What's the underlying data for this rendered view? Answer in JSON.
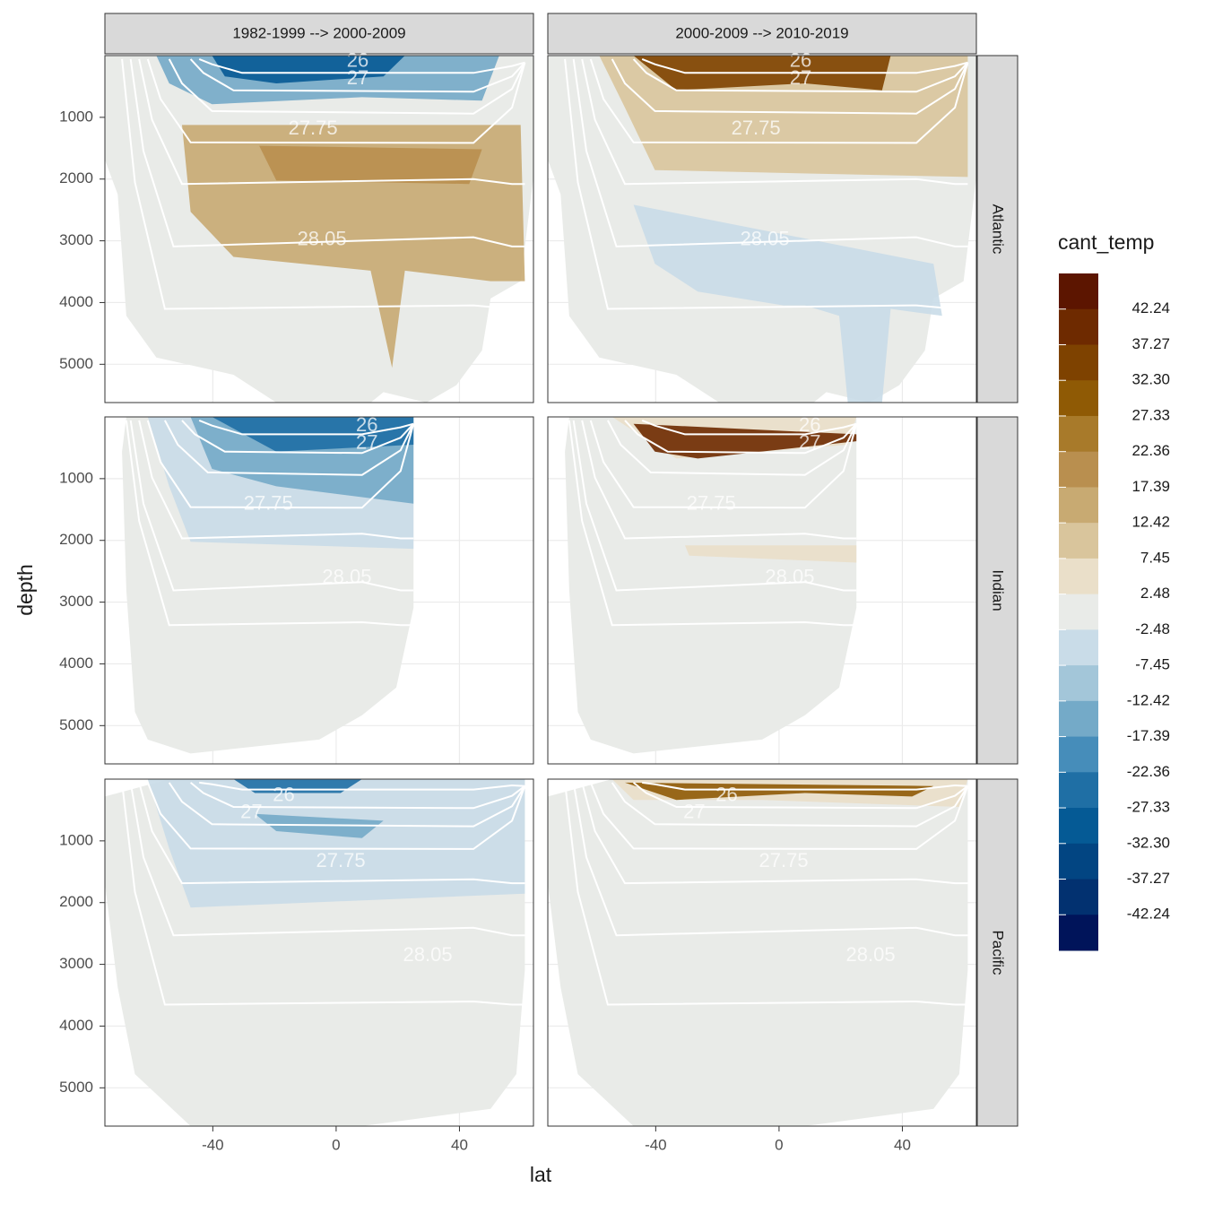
{
  "chart_data": {
    "type": "contour",
    "xlabel": "lat",
    "ylabel": "depth",
    "facet_cols": [
      "1982-1999 --> 2000-2009",
      "2000-2009 --> 2010-2019"
    ],
    "facet_rows": [
      "Atlantic",
      "Indian",
      "Pacific"
    ],
    "xlim": [
      -75,
      64
    ],
    "ylim": [
      0,
      5620
    ],
    "xticks": [
      -40,
      0,
      40
    ],
    "yticks": [
      1000,
      2000,
      3000,
      4000,
      5000
    ],
    "y_reversed": true,
    "grid": true,
    "legend_title": "cant_temp",
    "legend_breaks": [
      42.24,
      37.27,
      32.3,
      27.33,
      22.36,
      17.39,
      12.42,
      7.45,
      2.48,
      -2.48,
      -7.45,
      -12.42,
      -17.39,
      -22.36,
      -27.33,
      -32.3,
      -37.27,
      -42.24
    ],
    "legend_break_labels": [
      "42.24",
      "37.27",
      "32.30",
      "27.33",
      "22.36",
      "17.39",
      "12.42",
      "7.45",
      "2.48",
      "-2.48",
      "-7.45",
      "-12.42",
      "-17.39",
      "-22.36",
      "-27.33",
      "-32.30",
      "-37.27",
      "-42.24"
    ],
    "legend_colors": [
      "#5c1500",
      "#6e2a00",
      "#7e4200",
      "#8f5a05",
      "#a87a2a",
      "#b98f4f",
      "#c8aa72",
      "#d9c59c",
      "#eadfc9",
      "#e9ebe8",
      "#c9dce8",
      "#a3c6d9",
      "#74aac8",
      "#468dba",
      "#1f6fa5",
      "#055a95",
      "#024582",
      "#023170",
      "#00145a"
    ],
    "row_annotations": [
      [
        {
          "text": "26",
          "x": 7,
          "y": 100
        },
        {
          "text": "27",
          "x": 7,
          "y": 380
        },
        {
          "text": "27.75",
          "x": -7.5,
          "y": 1190
        },
        {
          "text": "28.05",
          "x": -4.6,
          "y": 2990
        }
      ],
      [
        {
          "text": "26",
          "x": 10,
          "y": 150
        },
        {
          "text": "27",
          "x": 10,
          "y": 430
        },
        {
          "text": "27.75",
          "x": -22,
          "y": 1420
        },
        {
          "text": "28.05",
          "x": 3.5,
          "y": 2610
        }
      ],
      [
        {
          "text": "26",
          "x": -17,
          "y": 270
        },
        {
          "text": "27",
          "x": -27.5,
          "y": 550
        },
        {
          "text": "27.75",
          "x": 1.5,
          "y": 1340
        },
        {
          "text": "28.05",
          "x": 29.7,
          "y": 2860
        }
      ]
    ]
  }
}
